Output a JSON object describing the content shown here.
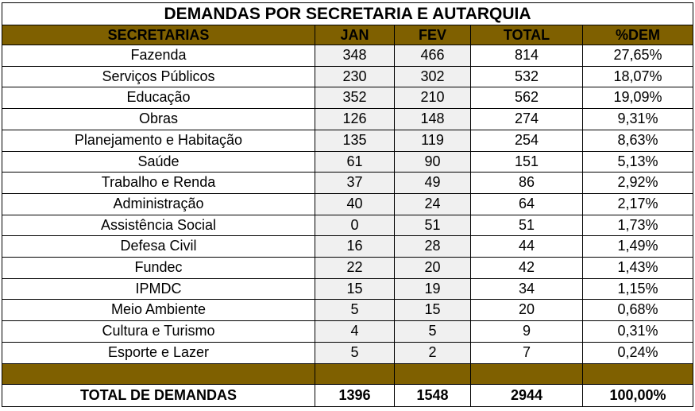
{
  "title": "DEMANDAS POR SECRETARIA E AUTARQUIA",
  "headers": [
    "SECRETARIAS",
    "JAN",
    "FEV",
    "TOTAL",
    "%DEM"
  ],
  "rows": [
    {
      "name": "Fazenda",
      "jan": "348",
      "fev": "466",
      "total": "814",
      "pct": "27,65%"
    },
    {
      "name": "Serviços Públicos",
      "jan": "230",
      "fev": "302",
      "total": "532",
      "pct": "18,07%"
    },
    {
      "name": "Educação",
      "jan": "352",
      "fev": "210",
      "total": "562",
      "pct": "19,09%"
    },
    {
      "name": "Obras",
      "jan": "126",
      "fev": "148",
      "total": "274",
      "pct": "9,31%"
    },
    {
      "name": "Planejamento e Habitação",
      "jan": "135",
      "fev": "119",
      "total": "254",
      "pct": "8,63%"
    },
    {
      "name": "Saúde",
      "jan": "61",
      "fev": "90",
      "total": "151",
      "pct": "5,13%"
    },
    {
      "name": "Trabalho e Renda",
      "jan": "37",
      "fev": "49",
      "total": "86",
      "pct": "2,92%"
    },
    {
      "name": "Administração",
      "jan": "40",
      "fev": "24",
      "total": "64",
      "pct": "2,17%"
    },
    {
      "name": "Assistência Social",
      "jan": "0",
      "fev": "51",
      "total": "51",
      "pct": "1,73%"
    },
    {
      "name": "Defesa Civil",
      "jan": "16",
      "fev": "28",
      "total": "44",
      "pct": "1,49%"
    },
    {
      "name": "Fundec",
      "jan": "22",
      "fev": "20",
      "total": "42",
      "pct": "1,43%"
    },
    {
      "name": "IPMDC",
      "jan": "15",
      "fev": "19",
      "total": "34",
      "pct": "1,15%"
    },
    {
      "name": "Meio Ambiente",
      "jan": "5",
      "fev": "15",
      "total": "20",
      "pct": "0,68%"
    },
    {
      "name": "Cultura e Turismo",
      "jan": "4",
      "fev": "5",
      "total": "9",
      "pct": "0,31%"
    },
    {
      "name": "Esporte e Lazer",
      "jan": "5",
      "fev": "2",
      "total": "7",
      "pct": "0,24%"
    }
  ],
  "totals": {
    "label": "TOTAL DE DEMANDAS",
    "jan": "1396",
    "fev": "1548",
    "total": "2944",
    "pct": "100,00%"
  },
  "colors": {
    "header_bg": "#7f6000",
    "shaded_cell": "#f0f0f0"
  }
}
